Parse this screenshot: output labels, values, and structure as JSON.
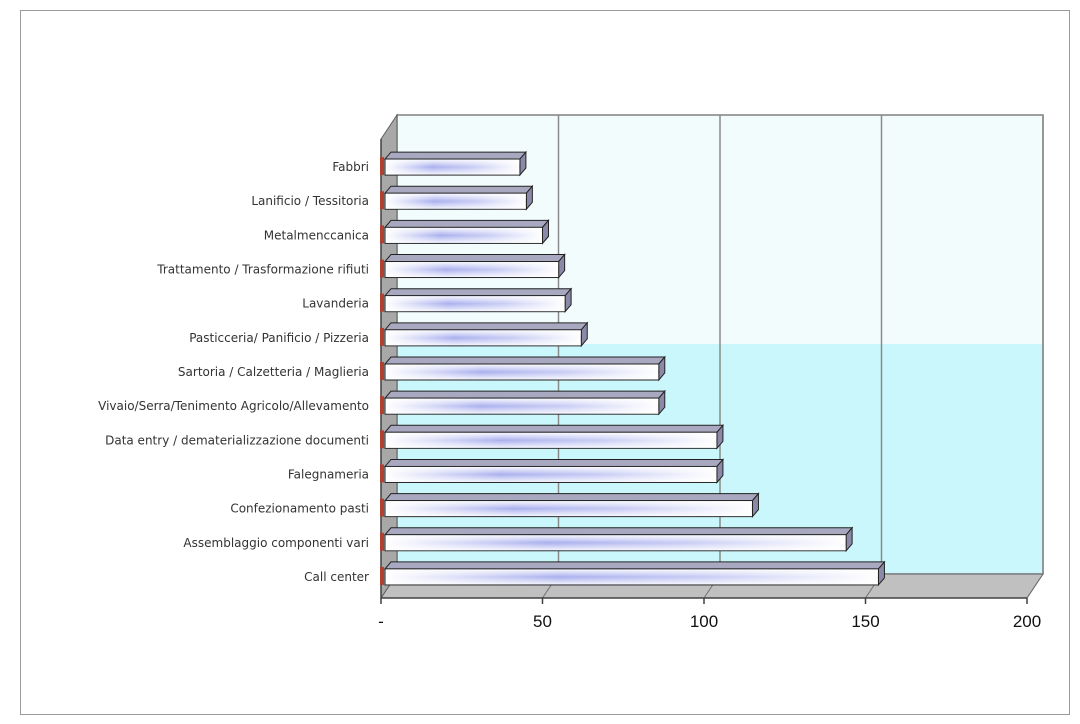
{
  "chart_data": {
    "type": "bar",
    "orientation": "horizontal",
    "style": "3d",
    "title": "",
    "xlabel": "",
    "ylabel": "",
    "categories": [
      "Fabbri",
      "Lanificio / Tessitoria",
      "Metalmenccanica",
      "Trattamento / Trasformazione rifiuti",
      "Lavanderia",
      "Pasticceria/ Panificio / Pizzeria",
      "Sartoria / Calzetteria / Maglieria",
      "Vivaio/Serra/Tenimento Agricolo/Allevamento",
      "Data entry / dematerializzazione documenti",
      "Falegnameria",
      "Confezionamento pasti",
      "Assemblaggio componenti vari",
      "Call center"
    ],
    "values": [
      43,
      45,
      50,
      55,
      57,
      62,
      86,
      86,
      104,
      104,
      115,
      144,
      154
    ],
    "xlim": [
      0,
      200
    ],
    "xticks": [
      0,
      50,
      100,
      150,
      200
    ],
    "xtick_labels": [
      "-",
      "50",
      "100",
      "150",
      "200"
    ],
    "grid": true,
    "legend": "none",
    "colors": {
      "wall_top": "#f2fcfd",
      "wall_bottom": "#c9f7fb",
      "floor": "#c0c0c0",
      "side_wall": "#a8a8a8",
      "bar_front_light": "#ffffff",
      "bar_front_mid": "#aab0ee",
      "bar_top": "#a8a8c0",
      "bar_side": "#8a8aa8",
      "axis_accent": "#b04030"
    }
  }
}
